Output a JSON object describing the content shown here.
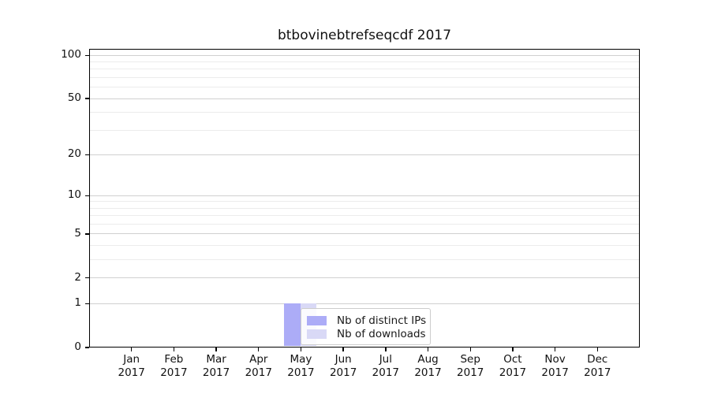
{
  "chart_data": {
    "type": "bar",
    "title": "btbovinebtrefseqcdf 2017",
    "categories": [
      "Jan 2017",
      "Feb 2017",
      "Mar 2017",
      "Apr 2017",
      "May 2017",
      "Jun 2017",
      "Jul 2017",
      "Aug 2017",
      "Sep 2017",
      "Oct 2017",
      "Nov 2017",
      "Dec 2017"
    ],
    "series": [
      {
        "name": "Nb of distinct IPs",
        "color": "#acacf7",
        "values": [
          0,
          0,
          0,
          0,
          1,
          0,
          0,
          0,
          0,
          0,
          0,
          0
        ]
      },
      {
        "name": "Nb of downloads",
        "color": "#d9d9f6",
        "values": [
          0,
          0,
          0,
          0,
          1,
          0,
          0,
          0,
          0,
          0,
          0,
          0
        ]
      }
    ],
    "xlabel": "",
    "ylabel": "",
    "yscale": "log1p",
    "ylim": [
      0,
      111
    ],
    "yticks": [
      0,
      1,
      2,
      5,
      10,
      20,
      50,
      100
    ],
    "minor_yticks": [
      3,
      4,
      6,
      7,
      8,
      9,
      30,
      40,
      60,
      70,
      80,
      90
    ],
    "grid": "horizontal major+minor",
    "legend": {
      "position": "inside lower-center",
      "entries": [
        "Nb of distinct IPs",
        "Nb of downloads"
      ]
    }
  },
  "colors": {
    "major_grid": "#d0d0d0",
    "minor_grid": "#ececec",
    "spine": "#000000",
    "legend_border": "#cccccc",
    "text": "#111111"
  }
}
